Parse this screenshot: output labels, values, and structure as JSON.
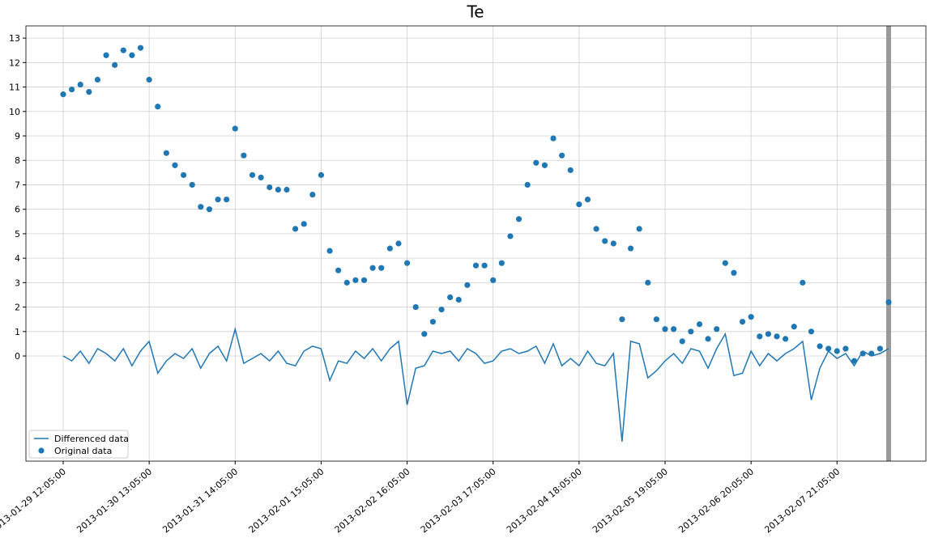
{
  "chart_data": {
    "type": "line",
    "title": "Te",
    "categories": [
      "2013-01-29 12:05:00",
      null,
      null,
      null,
      null,
      null,
      null,
      null,
      null,
      null,
      "2013-01-30 13:05:00",
      null,
      null,
      null,
      null,
      null,
      null,
      null,
      null,
      null,
      "2013-01-31 14:05:00",
      null,
      null,
      null,
      null,
      null,
      null,
      null,
      null,
      null,
      "2013-02-01 15:05:00",
      null,
      null,
      null,
      null,
      null,
      null,
      null,
      null,
      null,
      "2013-02-02 16:05:00",
      null,
      null,
      null,
      null,
      null,
      null,
      null,
      null,
      null,
      "2013-02-03 17:05:00",
      null,
      null,
      null,
      null,
      null,
      null,
      null,
      null,
      null,
      "2013-02-04 18:05:00",
      null,
      null,
      null,
      null,
      null,
      null,
      null,
      null,
      null,
      "2013-02-05 19:05:00",
      null,
      null,
      null,
      null,
      null,
      null,
      null,
      null,
      null,
      "2013-02-06 20:05:00",
      null,
      null,
      null,
      null,
      null,
      null,
      null,
      null,
      null,
      "2013-02-07 21:05:00",
      null,
      null,
      null,
      null,
      null,
      null
    ],
    "series": [
      {
        "name": "Differenced data",
        "type": "line",
        "color": "#1f77b4",
        "values": [
          0,
          -0.2,
          0.2,
          -0.3,
          0.3,
          0.1,
          -0.2,
          0.3,
          -0.4,
          0.2,
          0.6,
          -0.7,
          -0.2,
          0.1,
          -0.1,
          0.3,
          -0.5,
          0.1,
          0.4,
          -0.2,
          1.1,
          -0.3,
          -0.1,
          0.1,
          -0.2,
          0.2,
          -0.3,
          -0.4,
          0.2,
          0.4,
          0.3,
          -1.0,
          -0.2,
          -0.3,
          0.2,
          -0.1,
          0.3,
          -0.2,
          0.3,
          0.6,
          -2.0,
          -0.5,
          -0.4,
          0.2,
          0.1,
          0.2,
          -0.2,
          0.3,
          0.1,
          -0.3,
          -0.2,
          0.2,
          0.3,
          0.1,
          0.2,
          0.4,
          -0.3,
          0.5,
          -0.4,
          -0.1,
          -0.4,
          0.2,
          -0.3,
          -0.4,
          0.1,
          -3.5,
          0.6,
          0.5,
          -0.9,
          -0.6,
          -0.2,
          0.1,
          -0.3,
          0.3,
          0.2,
          -0.5,
          0.3,
          0.9,
          -0.8,
          -0.7,
          0.2,
          -0.4,
          0.1,
          -0.2,
          0.1,
          0.3,
          0.6,
          -1.8,
          -0.5,
          0.2,
          -0.1,
          0.1,
          -0.4,
          0.2,
          0.0,
          0.1,
          0.3
        ]
      },
      {
        "name": "Original data",
        "type": "scatter",
        "color": "#1f77b4",
        "values": [
          10.7,
          10.9,
          11.1,
          10.8,
          11.3,
          12.3,
          11.9,
          12.5,
          12.3,
          12.6,
          11.3,
          10.2,
          8.3,
          7.8,
          7.4,
          7.0,
          6.1,
          6.0,
          6.4,
          6.4,
          9.3,
          8.2,
          7.4,
          7.3,
          6.9,
          6.8,
          6.8,
          5.2,
          5.4,
          6.6,
          7.4,
          4.3,
          3.5,
          3.0,
          3.1,
          3.1,
          3.6,
          3.6,
          4.4,
          4.6,
          3.8,
          2.0,
          0.9,
          1.4,
          1.9,
          2.4,
          2.3,
          2.9,
          3.7,
          3.7,
          3.1,
          3.8,
          4.9,
          5.6,
          7.0,
          7.9,
          7.8,
          8.9,
          8.2,
          7.6,
          6.2,
          6.4,
          5.2,
          4.7,
          4.6,
          1.5,
          4.4,
          5.2,
          3.0,
          1.5,
          1.1,
          1.1,
          0.6,
          1.0,
          1.3,
          0.7,
          1.1,
          3.8,
          3.4,
          1.4,
          1.6,
          0.8,
          0.9,
          0.8,
          0.7,
          1.2,
          3.0,
          1.0,
          0.4,
          0.3,
          0.2,
          0.3,
          -0.2,
          0.1,
          0.1,
          0.3,
          2.2
        ]
      }
    ],
    "ylim": [
      -4.3,
      13.5
    ],
    "yticks": [
      0,
      1,
      2,
      3,
      4,
      5,
      6,
      7,
      8,
      9,
      10,
      11,
      12,
      13
    ],
    "grid": true,
    "legend": "lower left"
  }
}
